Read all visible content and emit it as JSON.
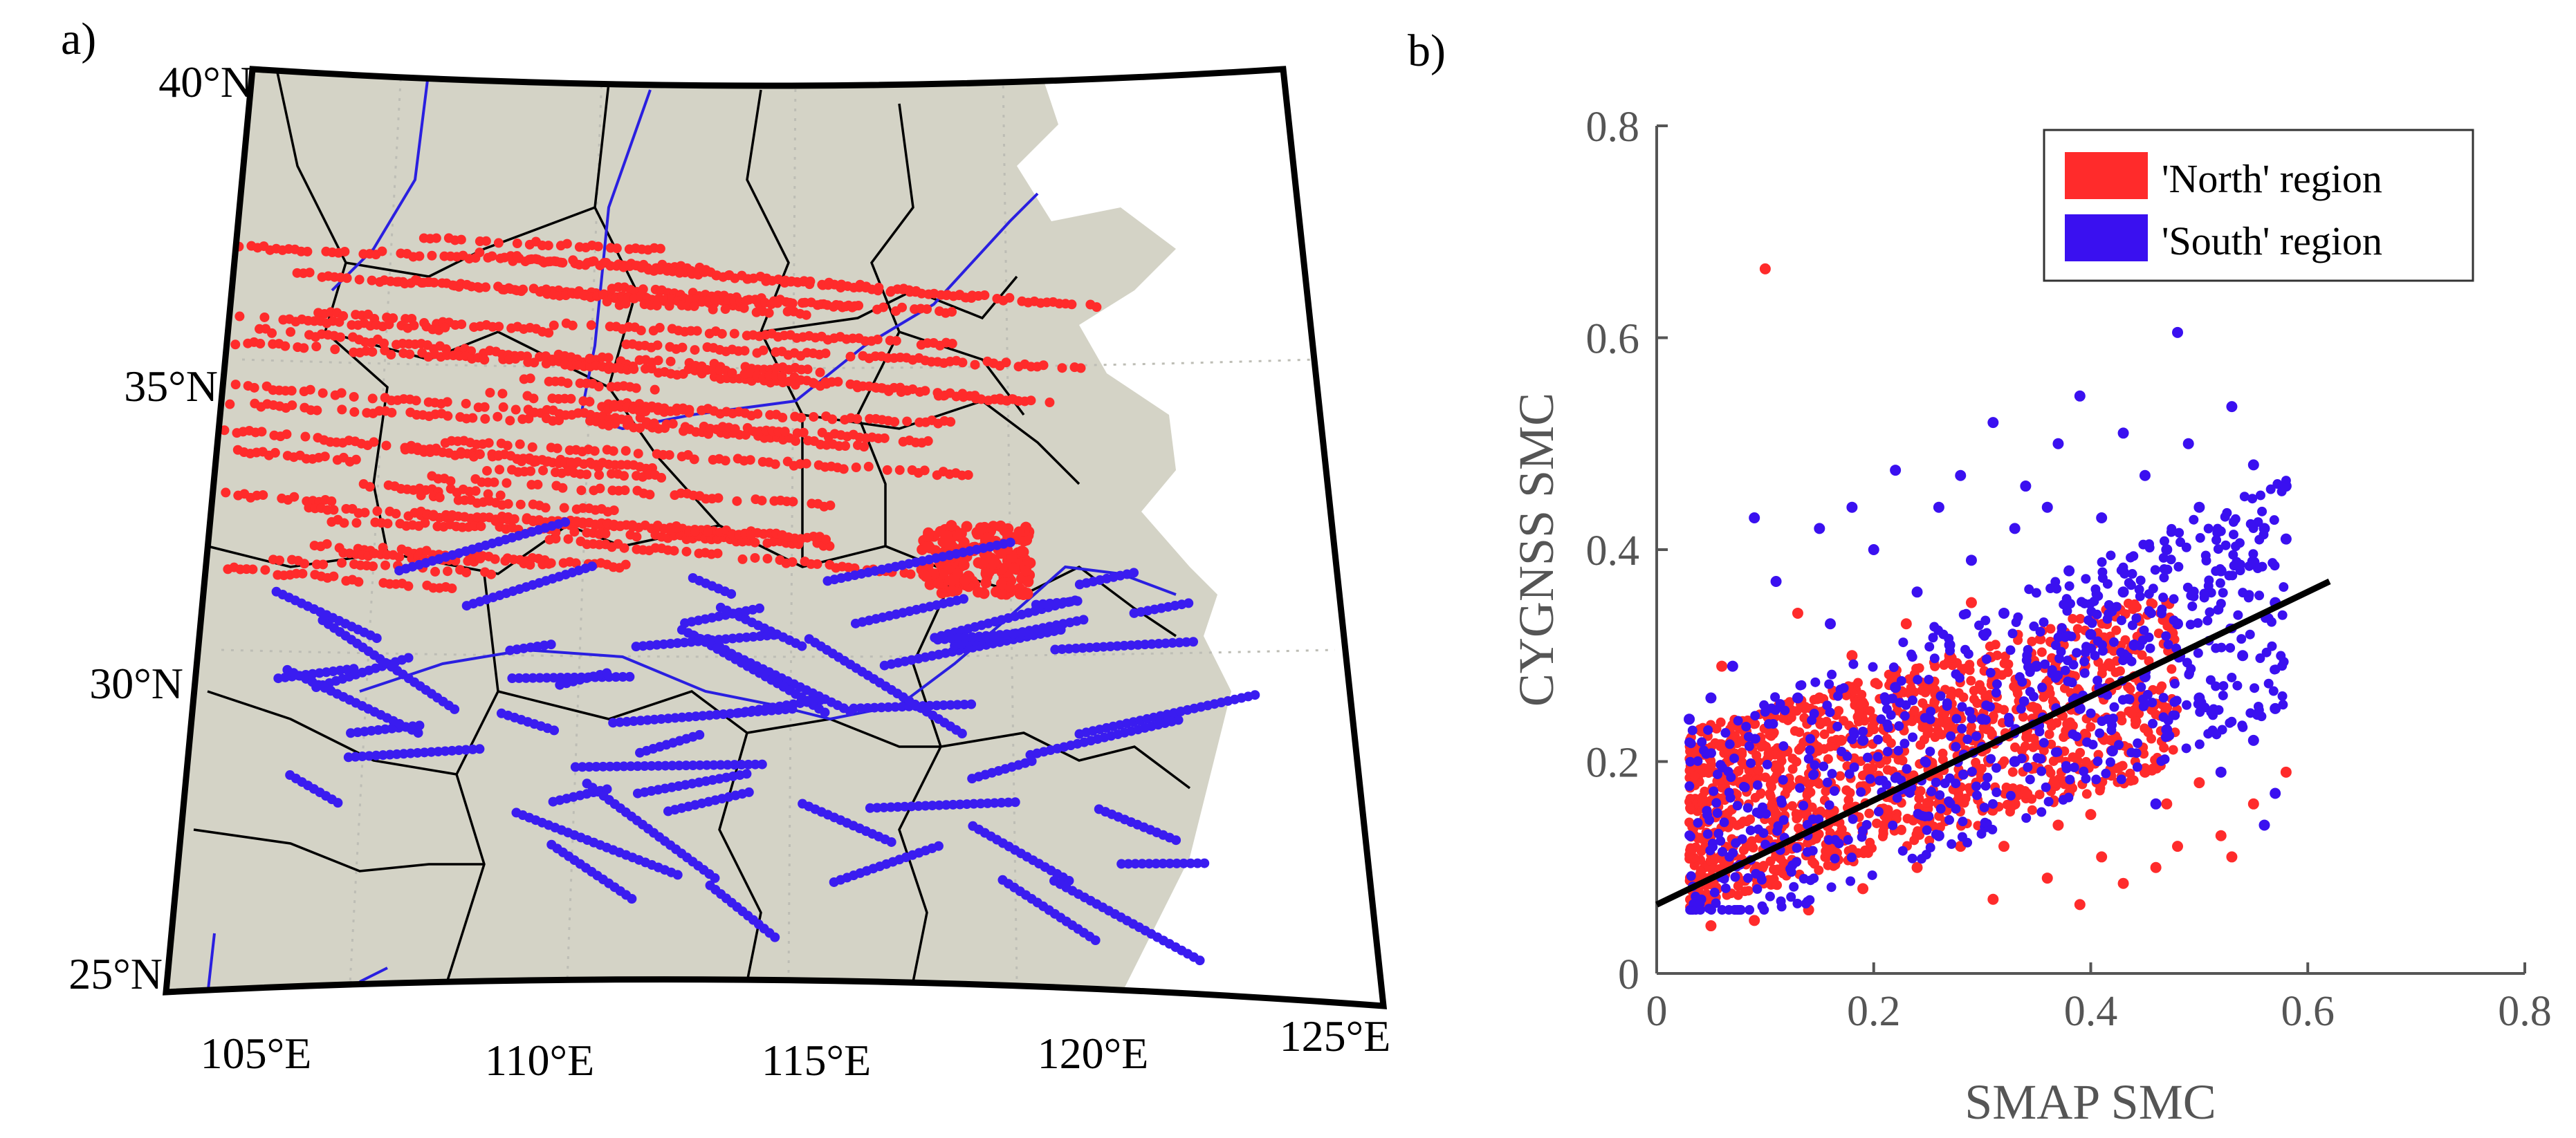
{
  "panel_a": {
    "label": "a)",
    "lat_labels": [
      "40°N",
      "35°N",
      "30°N",
      "25°N"
    ],
    "lon_labels": [
      "105°E",
      "110°E",
      "115°E",
      "120°E",
      "125°E"
    ],
    "lat_values": [
      40,
      35,
      30,
      25
    ],
    "lon_values": [
      105,
      110,
      115,
      120,
      125
    ],
    "extent": {
      "lon_min": 104,
      "lon_max": 126,
      "lat_min": 25,
      "lat_max": 40
    },
    "colors": {
      "land": "#d4d3c6",
      "sea": "#ffffff",
      "north": "#ff2b2b",
      "south": "#3a1cf0",
      "river": "#2a1fe0",
      "border": "#000000"
    }
  },
  "panel_b": {
    "label": "b)",
    "legend": {
      "north": "'North' region",
      "south": "'South' region"
    },
    "colors": {
      "north": "#ff2b2b",
      "south": "#3a10f0",
      "fit": "#000000",
      "axis": "#555555"
    }
  },
  "chart_data": {
    "type": "scatter",
    "title": "",
    "xlabel": "SMAP SMC",
    "ylabel": "CYGNSS SMC",
    "xlim": [
      0,
      0.8
    ],
    "ylim": [
      0,
      0.8
    ],
    "xticks": [
      0,
      0.2,
      0.4,
      0.6,
      0.8
    ],
    "yticks": [
      0,
      0.2,
      0.4,
      0.6,
      0.8
    ],
    "xtick_labels": [
      "0",
      "0.2",
      "0.4",
      "0.6",
      "0.8"
    ],
    "ytick_labels": [
      "0",
      "0.2",
      "0.4",
      "0.6",
      "0.8"
    ],
    "legend_position": "top-right",
    "fit_line": {
      "x": [
        0,
        0.62
      ],
      "y": [
        0.065,
        0.37
      ]
    },
    "series": [
      {
        "name": "'North' region",
        "color": "#ff2b2b",
        "points": [
          [
            0.1,
            0.665
          ],
          [
            0.04,
            0.23
          ],
          [
            0.06,
            0.29
          ],
          [
            0.08,
            0.22
          ],
          [
            0.12,
            0.21
          ],
          [
            0.15,
            0.26
          ],
          [
            0.18,
            0.3
          ],
          [
            0.2,
            0.24
          ],
          [
            0.22,
            0.28
          ],
          [
            0.25,
            0.23
          ],
          [
            0.27,
            0.3
          ],
          [
            0.3,
            0.21
          ],
          [
            0.33,
            0.2
          ],
          [
            0.35,
            0.25
          ],
          [
            0.38,
            0.17
          ],
          [
            0.4,
            0.15
          ],
          [
            0.42,
            0.22
          ],
          [
            0.45,
            0.19
          ],
          [
            0.47,
            0.16
          ],
          [
            0.5,
            0.18
          ],
          [
            0.52,
            0.13
          ],
          [
            0.55,
            0.16
          ],
          [
            0.58,
            0.19
          ],
          [
            0.53,
            0.11
          ],
          [
            0.48,
            0.12
          ],
          [
            0.43,
            0.085
          ],
          [
            0.39,
            0.065
          ],
          [
            0.36,
            0.09
          ],
          [
            0.31,
            0.07
          ],
          [
            0.28,
            0.12
          ],
          [
            0.24,
            0.1
          ],
          [
            0.19,
            0.08
          ],
          [
            0.14,
            0.06
          ],
          [
            0.09,
            0.05
          ],
          [
            0.05,
            0.045
          ],
          [
            0.07,
            0.12
          ],
          [
            0.11,
            0.15
          ],
          [
            0.16,
            0.18
          ],
          [
            0.21,
            0.14
          ],
          [
            0.26,
            0.16
          ],
          [
            0.32,
            0.12
          ],
          [
            0.37,
            0.14
          ],
          [
            0.41,
            0.11
          ],
          [
            0.46,
            0.1
          ],
          [
            0.13,
            0.34
          ],
          [
            0.23,
            0.33
          ],
          [
            0.29,
            0.35
          ],
          [
            0.17,
            0.22
          ],
          [
            0.33,
            0.16
          ],
          [
            0.44,
            0.28
          ]
        ]
      },
      {
        "name": "'South' region",
        "color": "#3a10f0",
        "points": [
          [
            0.48,
            0.605
          ],
          [
            0.39,
            0.545
          ],
          [
            0.53,
            0.535
          ],
          [
            0.31,
            0.52
          ],
          [
            0.43,
            0.51
          ],
          [
            0.37,
            0.5
          ],
          [
            0.55,
            0.48
          ],
          [
            0.22,
            0.475
          ],
          [
            0.28,
            0.47
          ],
          [
            0.45,
            0.47
          ],
          [
            0.58,
            0.46
          ],
          [
            0.34,
            0.46
          ],
          [
            0.18,
            0.44
          ],
          [
            0.26,
            0.44
          ],
          [
            0.5,
            0.44
          ],
          [
            0.41,
            0.43
          ],
          [
            0.09,
            0.43
          ],
          [
            0.15,
            0.42
          ],
          [
            0.33,
            0.42
          ],
          [
            0.56,
            0.42
          ],
          [
            0.47,
            0.4
          ],
          [
            0.2,
            0.4
          ],
          [
            0.29,
            0.39
          ],
          [
            0.38,
            0.38
          ],
          [
            0.52,
            0.38
          ],
          [
            0.11,
            0.37
          ],
          [
            0.24,
            0.36
          ],
          [
            0.43,
            0.36
          ],
          [
            0.57,
            0.35
          ],
          [
            0.32,
            0.34
          ],
          [
            0.16,
            0.33
          ],
          [
            0.48,
            0.33
          ],
          [
            0.4,
            0.32
          ],
          [
            0.27,
            0.31
          ],
          [
            0.54,
            0.3
          ],
          [
            0.35,
            0.29
          ],
          [
            0.45,
            0.28
          ],
          [
            0.22,
            0.27
          ],
          [
            0.5,
            0.26
          ],
          [
            0.13,
            0.26
          ],
          [
            0.57,
            0.25
          ],
          [
            0.39,
            0.25
          ],
          [
            0.3,
            0.24
          ],
          [
            0.47,
            0.23
          ],
          [
            0.55,
            0.22
          ],
          [
            0.42,
            0.21
          ],
          [
            0.33,
            0.2
          ],
          [
            0.52,
            0.19
          ],
          [
            0.57,
            0.17
          ],
          [
            0.46,
            0.16
          ],
          [
            0.56,
            0.14
          ],
          [
            0.26,
            0.13
          ],
          [
            0.19,
            0.22
          ],
          [
            0.07,
            0.29
          ],
          [
            0.05,
            0.26
          ],
          [
            0.36,
            0.44
          ],
          [
            0.49,
            0.5
          ],
          [
            0.58,
            0.41
          ],
          [
            0.03,
            0.24
          ],
          [
            0.44,
            0.31
          ]
        ]
      }
    ]
  }
}
